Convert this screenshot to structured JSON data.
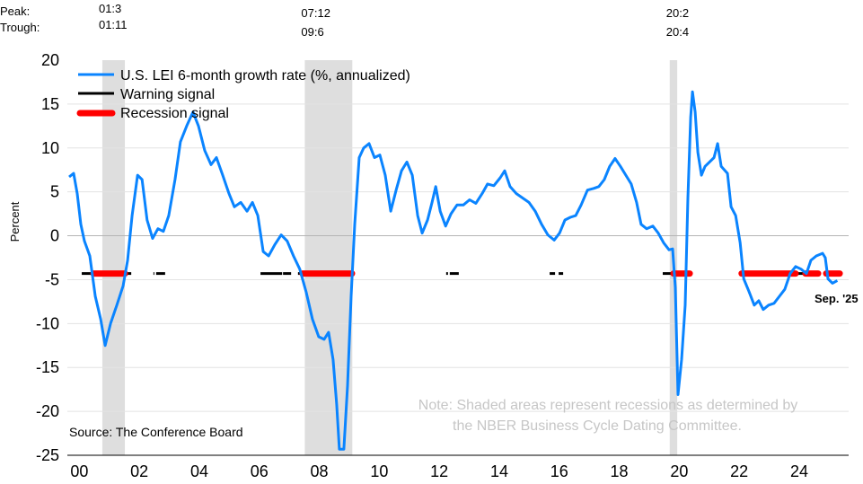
{
  "chart_data": {
    "type": "line",
    "title": "",
    "xlabel": "",
    "ylabel": "Percent",
    "ylim": [
      -25,
      20
    ],
    "xlim": [
      2000,
      2025.85
    ],
    "yticks": [
      20,
      15,
      10,
      5,
      0,
      -5,
      -10,
      -15,
      -20,
      -25
    ],
    "ytick_labels": [
      "20",
      "15",
      "10",
      "5",
      "0",
      "-5",
      "-10",
      "-15",
      "-20",
      "-25"
    ],
    "xticks": [
      2000.4,
      2002.4,
      2004.4,
      2006.4,
      2008.4,
      2010.4,
      2012.4,
      2014.4,
      2016.4,
      2018.4,
      2020.4,
      2022.4,
      2024.4
    ],
    "xtick_labels": [
      "00",
      "02",
      "04",
      "06",
      "08",
      "10",
      "12",
      "14",
      "16",
      "18",
      "20",
      "22",
      "24"
    ],
    "grid": true,
    "legend_position": "top-left",
    "legend": [
      {
        "label": "U.S. LEI 6-month growth rate (%, annualized)",
        "color": "#0a84ff"
      },
      {
        "label": "Warning signal",
        "color": "#000000"
      },
      {
        "label": "Recession signal",
        "color": "#ff0000"
      }
    ],
    "series": [
      {
        "name": "U.S. LEI 6-month growth rate (%, annualized)",
        "color": "#0a84ff",
        "x": [
          2000.06,
          2000.21,
          2000.33,
          2000.45,
          2000.57,
          2000.75,
          2000.93,
          2001.11,
          2001.26,
          2001.44,
          2001.65,
          2001.86,
          2002.01,
          2002.16,
          2002.34,
          2002.49,
          2002.66,
          2002.84,
          2003.02,
          2003.2,
          2003.38,
          2003.59,
          2003.77,
          2003.98,
          2004.19,
          2004.37,
          2004.58,
          2004.79,
          2004.97,
          2005.18,
          2005.39,
          2005.57,
          2005.78,
          2005.99,
          2006.17,
          2006.35,
          2006.53,
          2006.71,
          2006.92,
          2007.13,
          2007.33,
          2007.54,
          2007.75,
          2007.96,
          2008.17,
          2008.38,
          2008.56,
          2008.71,
          2008.86,
          2008.98,
          2009.07,
          2009.22,
          2009.34,
          2009.46,
          2009.58,
          2009.73,
          2009.88,
          2010.06,
          2010.24,
          2010.42,
          2010.6,
          2010.78,
          2010.96,
          2011.14,
          2011.32,
          2011.5,
          2011.68,
          2011.83,
          2012.01,
          2012.16,
          2012.28,
          2012.43,
          2012.61,
          2012.79,
          2012.99,
          2013.2,
          2013.41,
          2013.62,
          2013.83,
          2014.01,
          2014.22,
          2014.43,
          2014.58,
          2014.76,
          2014.97,
          2015.18,
          2015.39,
          2015.6,
          2015.81,
          2016.02,
          2016.23,
          2016.41,
          2016.59,
          2016.77,
          2016.95,
          2017.13,
          2017.34,
          2017.55,
          2017.72,
          2017.9,
          2018.08,
          2018.26,
          2018.44,
          2018.62,
          2018.8,
          2018.98,
          2019.13,
          2019.31,
          2019.52,
          2019.7,
          2019.88,
          2020.06,
          2020.18,
          2020.27,
          2020.36,
          2020.48,
          2020.6,
          2020.69,
          2020.78,
          2020.84,
          2020.93,
          2021.02,
          2021.14,
          2021.26,
          2021.41,
          2021.56,
          2021.68,
          2021.8,
          2022.01,
          2022.13,
          2022.28,
          2022.43,
          2022.55,
          2022.73,
          2022.9,
          2023.05,
          2023.2,
          2023.38,
          2023.56,
          2023.74,
          2023.92,
          2024.1,
          2024.28,
          2024.46,
          2024.64,
          2024.79,
          2024.97,
          2025.18,
          2025.27,
          2025.36,
          2025.51,
          2025.67
        ],
        "y": [
          6.7,
          7.1,
          4.8,
          1.3,
          -0.6,
          -2.3,
          -6.9,
          -9.5,
          -12.5,
          -10.0,
          -7.9,
          -5.7,
          -2.8,
          2.3,
          6.9,
          6.4,
          1.8,
          -0.3,
          0.8,
          0.5,
          2.3,
          6.4,
          10.7,
          12.5,
          14.1,
          12.5,
          9.7,
          8.1,
          8.9,
          6.9,
          4.8,
          3.3,
          3.8,
          2.8,
          3.8,
          2.3,
          -1.8,
          -2.3,
          -1.0,
          0.1,
          -0.6,
          -2.3,
          -3.8,
          -6.4,
          -9.5,
          -11.5,
          -11.8,
          -11.0,
          -14.1,
          -19.2,
          -24.3,
          -24.3,
          -17.1,
          -6.9,
          1.3,
          8.9,
          10.0,
          10.5,
          8.9,
          9.2,
          6.9,
          2.8,
          5.2,
          7.4,
          8.4,
          6.9,
          2.3,
          0.3,
          1.8,
          3.8,
          5.6,
          2.8,
          1.1,
          2.5,
          3.5,
          3.5,
          4.1,
          3.7,
          4.8,
          5.9,
          5.7,
          6.6,
          7.4,
          5.6,
          4.8,
          4.3,
          3.8,
          2.8,
          1.3,
          0.1,
          -0.5,
          0.3,
          1.8,
          2.1,
          2.3,
          3.5,
          5.2,
          5.4,
          5.6,
          6.4,
          7.9,
          8.8,
          7.9,
          6.9,
          5.9,
          3.8,
          1.3,
          0.8,
          1.1,
          0.3,
          -0.8,
          -1.6,
          -1.5,
          -5.9,
          -18.1,
          -14.1,
          -7.9,
          4.3,
          13.5,
          16.4,
          14.1,
          9.5,
          6.9,
          7.9,
          8.4,
          8.9,
          10.5,
          7.9,
          7.1,
          3.3,
          2.3,
          -0.8,
          -4.9,
          -6.4,
          -7.9,
          -7.4,
          -8.4,
          -7.9,
          -7.7,
          -6.9,
          -6.1,
          -4.3,
          -3.5,
          -3.8,
          -4.3,
          -2.8,
          -2.3,
          -2.0,
          -2.5,
          -4.9,
          -5.4,
          -5.1
        ]
      }
    ],
    "signal_level": -4.3,
    "warning_signal_periods": [
      [
        2000.48,
        2000.87
      ],
      [
        2001.92,
        2002.13
      ],
      [
        2002.87,
        2002.9
      ],
      [
        2002.96,
        2003.26
      ],
      [
        2006.44,
        2007.16
      ],
      [
        2007.19,
        2007.46
      ],
      [
        2007.69,
        2007.81
      ],
      [
        2012.63,
        2012.69
      ],
      [
        2012.75,
        2013.05
      ],
      [
        2016.08,
        2016.26
      ],
      [
        2016.38,
        2016.53
      ],
      [
        2019.85,
        2020.15
      ],
      [
        2024.28,
        2024.61
      ]
    ],
    "recession_signal_periods": [
      [
        2000.87,
        2001.92
      ],
      [
        2007.84,
        2009.49
      ],
      [
        2020.21,
        2020.75
      ],
      [
        2022.48,
        2024.28
      ],
      [
        2024.61,
        2025.03
      ],
      [
        2025.3,
        2025.75
      ]
    ],
    "recessions": [
      {
        "start": 2001.167,
        "end": 2001.917,
        "peak": "01:3",
        "trough": "01:11"
      },
      {
        "start": 2007.917,
        "end": 2009.5,
        "peak": "07:12",
        "trough": "09:6"
      },
      {
        "start": 2020.083,
        "end": 2020.333,
        "peak": "20:2",
        "trough": "20:4"
      }
    ],
    "header_labels": {
      "peak": "Peak:",
      "trough": "Trough:"
    },
    "end_label": "Sep. '25",
    "note_lines": [
      "Note: Shaded areas represent recessions as determined by",
      "the NBER Business Cycle Dating Committee."
    ],
    "source": "Source: The Conference Board"
  }
}
